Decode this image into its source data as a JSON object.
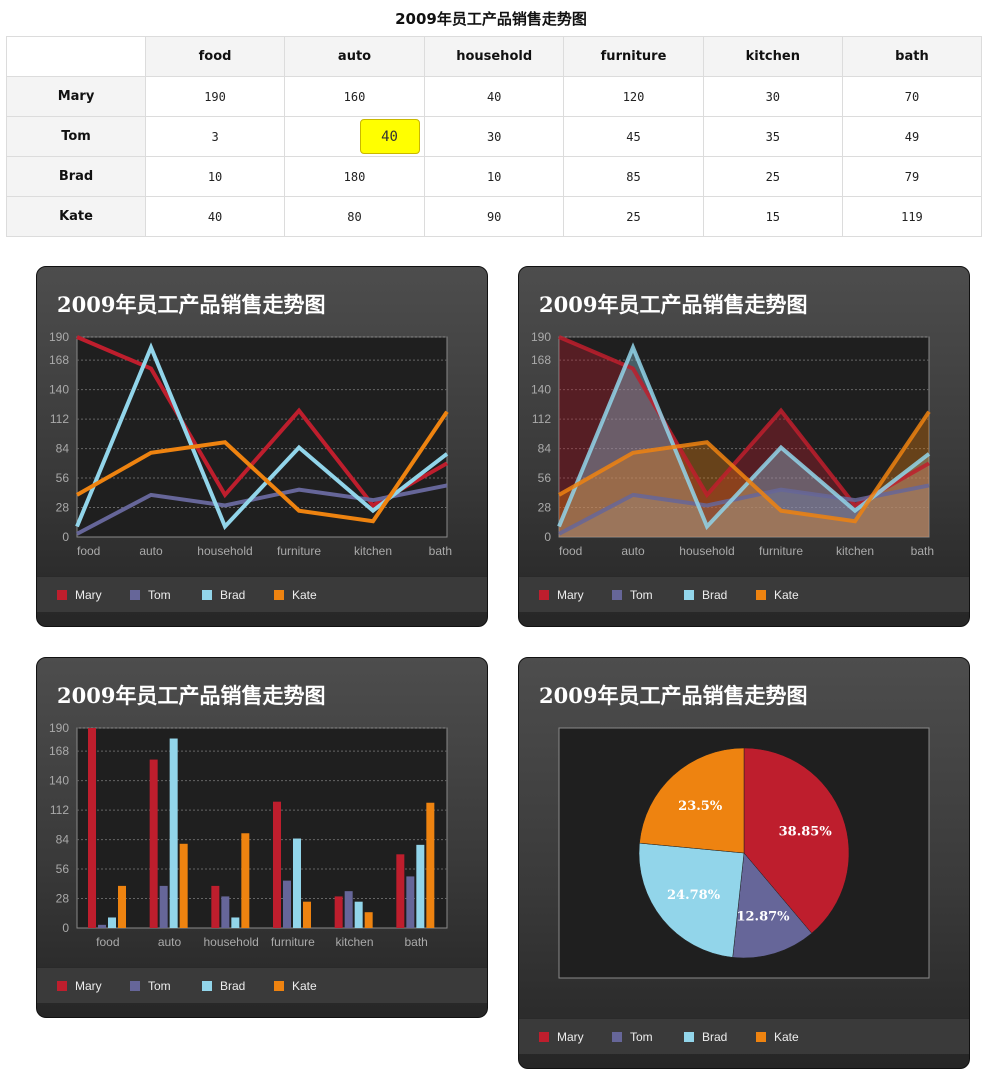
{
  "page": {
    "title": "2009年员工产品销售走势图"
  },
  "table": {
    "columns": [
      "food",
      "auto",
      "household",
      "furniture",
      "kitchen",
      "bath"
    ],
    "rows": [
      {
        "name": "Mary",
        "values": [
          "190",
          "160",
          "40",
          "120",
          "30",
          "70"
        ]
      },
      {
        "name": "Tom",
        "values": [
          "3",
          "40",
          "30",
          "45",
          "35",
          "49"
        ]
      },
      {
        "name": "Brad",
        "values": [
          "10",
          "180",
          "10",
          "85",
          "25",
          "79"
        ]
      },
      {
        "name": "Kate",
        "values": [
          "40",
          "80",
          "90",
          "25",
          "15",
          "119"
        ]
      }
    ],
    "editing_cell": {
      "row": 1,
      "col": 1
    }
  },
  "colors": {
    "Mary": "#be1e2d",
    "Tom": "#666699",
    "Brad": "#92d5ea",
    "Kate": "#ee8310"
  },
  "chart_data": [
    {
      "type": "line",
      "title": "2009年员工产品销售走势图",
      "categories": [
        "food",
        "auto",
        "household",
        "furniture",
        "kitchen",
        "bath"
      ],
      "yticks": [
        "0",
        "28",
        "56",
        "84",
        "112",
        "140",
        "168",
        "190"
      ],
      "ylim": [
        0,
        190
      ],
      "series": [
        {
          "name": "Mary",
          "values": [
            190,
            160,
            40,
            120,
            30,
            70
          ]
        },
        {
          "name": "Tom",
          "values": [
            3,
            40,
            30,
            45,
            35,
            49
          ]
        },
        {
          "name": "Brad",
          "values": [
            10,
            180,
            10,
            85,
            25,
            79
          ]
        },
        {
          "name": "Kate",
          "values": [
            40,
            80,
            90,
            25,
            15,
            119
          ]
        }
      ],
      "grid": true,
      "legend": "bottom"
    },
    {
      "type": "area",
      "title": "2009年员工产品销售走势图",
      "categories": [
        "food",
        "auto",
        "household",
        "furniture",
        "kitchen",
        "bath"
      ],
      "yticks": [
        "0",
        "28",
        "56",
        "84",
        "112",
        "140",
        "168",
        "190"
      ],
      "ylim": [
        0,
        190
      ],
      "series": [
        {
          "name": "Mary",
          "values": [
            190,
            160,
            40,
            120,
            30,
            70
          ]
        },
        {
          "name": "Tom",
          "values": [
            3,
            40,
            30,
            45,
            35,
            49
          ]
        },
        {
          "name": "Brad",
          "values": [
            10,
            180,
            10,
            85,
            25,
            79
          ]
        },
        {
          "name": "Kate",
          "values": [
            40,
            80,
            90,
            25,
            15,
            119
          ]
        }
      ],
      "grid": true,
      "legend": "bottom"
    },
    {
      "type": "bar",
      "title": "2009年员工产品销售走势图",
      "categories": [
        "food",
        "auto",
        "household",
        "furniture",
        "kitchen",
        "bath"
      ],
      "yticks": [
        "0",
        "28",
        "56",
        "84",
        "112",
        "140",
        "168",
        "190"
      ],
      "ylim": [
        0,
        190
      ],
      "series": [
        {
          "name": "Mary",
          "values": [
            190,
            160,
            40,
            120,
            30,
            70
          ]
        },
        {
          "name": "Tom",
          "values": [
            3,
            40,
            30,
            45,
            35,
            49
          ]
        },
        {
          "name": "Brad",
          "values": [
            10,
            180,
            10,
            85,
            25,
            79
          ]
        },
        {
          "name": "Kate",
          "values": [
            40,
            80,
            90,
            25,
            15,
            119
          ]
        }
      ],
      "grid": true,
      "legend": "bottom"
    },
    {
      "type": "pie",
      "title": "2009年员工产品销售走势图",
      "slices": [
        {
          "name": "Mary",
          "value": 38.85,
          "label": "38.85%"
        },
        {
          "name": "Tom",
          "value": 12.87,
          "label": "12.87%"
        },
        {
          "name": "Brad",
          "value": 24.78,
          "label": "24.78%"
        },
        {
          "name": "Kate",
          "value": 23.5,
          "label": "23.5%"
        }
      ],
      "legend": "bottom"
    }
  ]
}
